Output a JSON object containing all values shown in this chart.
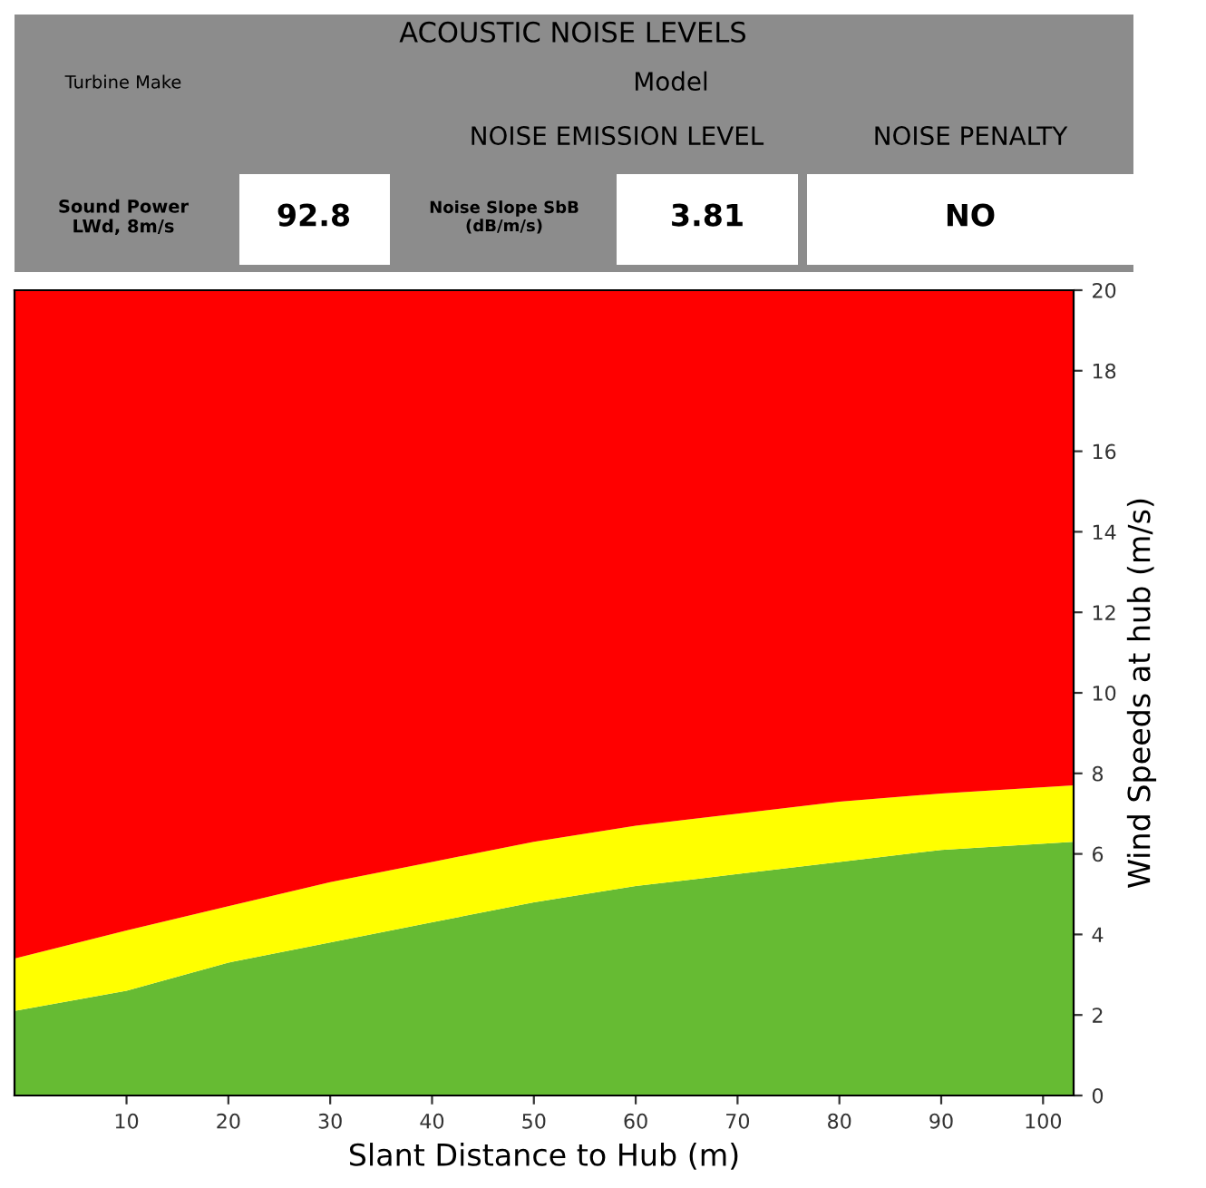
{
  "chart_data": {
    "type": "area",
    "stacked": true,
    "title": "ACOUSTIC NOISE LEVELS",
    "xlabel": "Slant Distance to Hub (m)",
    "ylabel": "Wind Speeds at hub (m/s)",
    "x": [
      -1,
      10,
      20,
      30,
      40,
      50,
      60,
      70,
      80,
      90,
      103
    ],
    "series": [
      {
        "color": "#66bb33",
        "values": [
          2.1,
          2.6,
          3.3,
          3.8,
          4.3,
          4.8,
          5.2,
          5.5,
          5.8,
          6.1,
          6.3
        ]
      },
      {
        "color": "#ffff00",
        "values": [
          1.3,
          1.5,
          1.4,
          1.5,
          1.5,
          1.5,
          1.5,
          1.5,
          1.5,
          1.4,
          1.4
        ]
      },
      {
        "color": "#ff0000",
        "values": [
          16.6,
          15.9,
          15.3,
          14.7,
          14.2,
          13.7,
          13.3,
          13.0,
          12.7,
          12.5,
          12.3
        ]
      }
    ],
    "xlim": [
      -1,
      103
    ],
    "ylim": [
      0,
      20
    ],
    "xticks": [
      10,
      20,
      30,
      40,
      50,
      60,
      70,
      80,
      90,
      100
    ],
    "yticks": [
      0,
      2,
      4,
      6,
      8,
      10,
      12,
      14,
      16,
      18,
      20
    ],
    "grid": false,
    "legend": false,
    "annotations": [
      "Turbine Make",
      "Model",
      "NOISE EMISSION LEVEL",
      "NOISE PENALTY",
      "Sound Power\nLWd, 8m/s",
      "92.8",
      "Noise Slope SbB\n(dB/m/s)",
      "3.81",
      "NO"
    ]
  }
}
